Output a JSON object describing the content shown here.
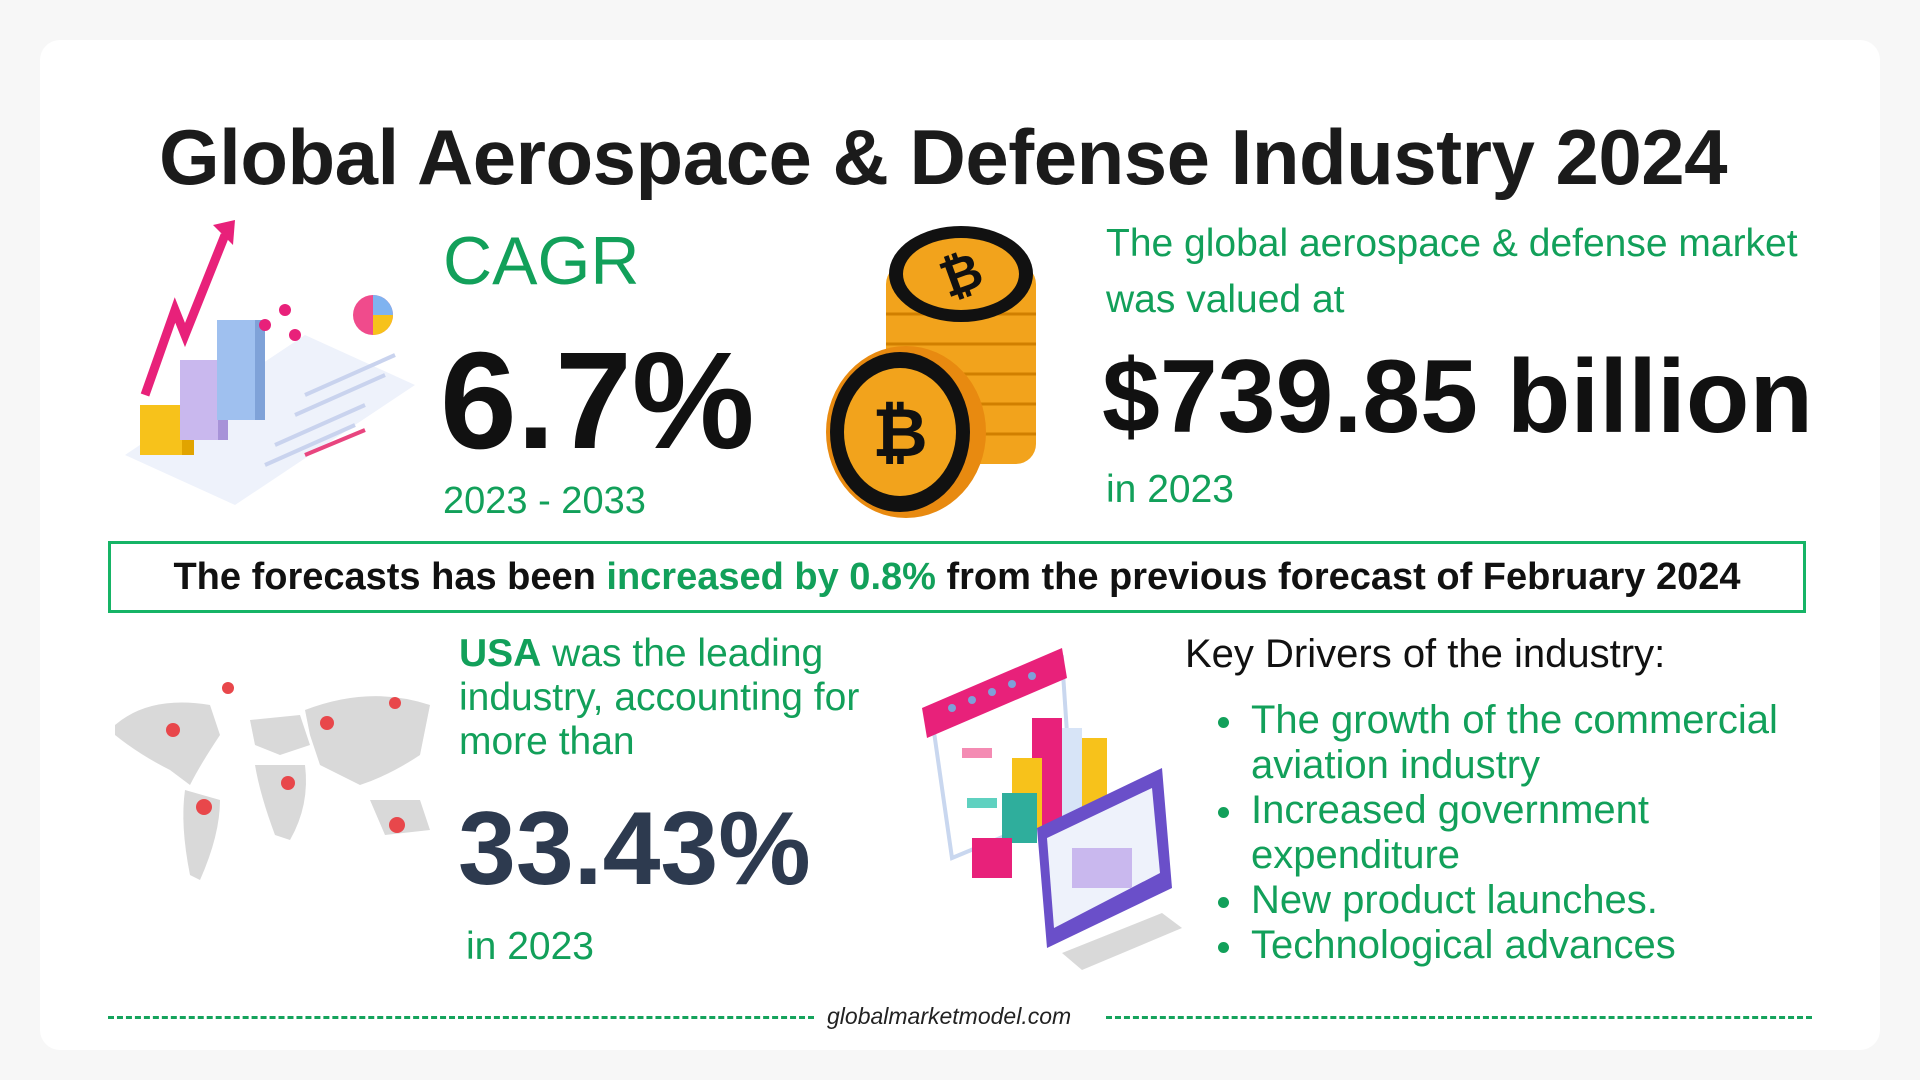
{
  "title": "Global Aerospace & Defense Industry 2024",
  "cagr": {
    "label": "CAGR",
    "value": "6.7%",
    "period": "2023 - 2033"
  },
  "market": {
    "line1": "The global aerospace & defense market",
    "line2": "was valued at",
    "value": "$739.85 billion",
    "year": "in 2023"
  },
  "banner": {
    "prefix": "The forecasts has been ",
    "highlight": "increased by 0.8%",
    "suffix": " from the previous forecast of February 2024"
  },
  "usa": {
    "country": "USA",
    "text": " was the leading industry, accounting for more than",
    "value": "33.43%",
    "year": "in 2023"
  },
  "key_drivers": {
    "title": "Key Drivers of the industry:",
    "items": [
      "The growth of the commercial aviation industry",
      "Increased government expenditure",
      "New product launches.",
      "Technological advances"
    ]
  },
  "footer": "globalmarketmodel.com",
  "colors": {
    "accent_green": "#12a05a",
    "border_green": "#16b466",
    "dark_value": "#2d3a4f"
  }
}
